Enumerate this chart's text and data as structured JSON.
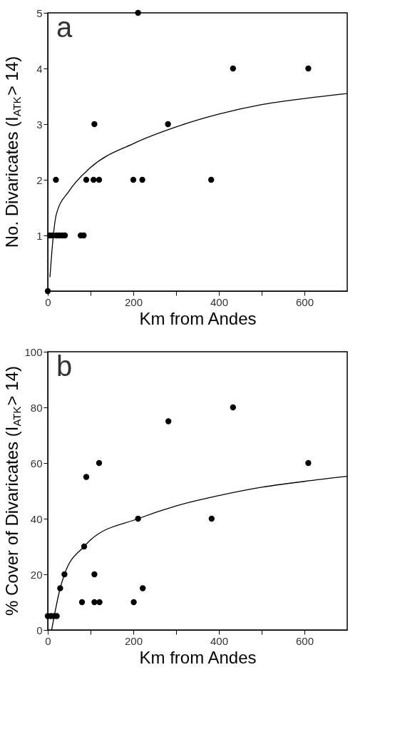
{
  "chart_data": [
    {
      "type": "scatter",
      "xlabel": "Km from Andes",
      "ylabel": "No. Divaricates (I$_{ATK}$> 14)",
      "annotations": [
        "a"
      ],
      "xlim": [
        0,
        700
      ],
      "xticks": [
        0,
        {
          "value": 100,
          "label": null
        },
        200,
        {
          "value": 300,
          "label": null
        },
        400,
        {
          "value": 500,
          "label": null
        },
        600
      ],
      "ylim": [
        0,
        5
      ],
      "yticks": [
        1,
        2,
        3,
        4,
        5
      ],
      "grid": false,
      "series": [
        {
          "type": "scatter",
          "marker": "circle",
          "color": "#000000",
          "x": [
            0,
            5,
            12,
            20,
            27,
            34,
            40,
            77,
            84,
            19,
            90,
            107,
            120,
            200,
            221,
            382,
            109,
            281,
            433,
            609,
            211
          ],
          "values": [
            0,
            1,
            1,
            1,
            1,
            1,
            1,
            1,
            1,
            2,
            2,
            2,
            2,
            2,
            2,
            2,
            3,
            3,
            4,
            4,
            5
          ]
        },
        {
          "type": "line",
          "marker": "none",
          "color": "#000000",
          "x": [
            5,
            10,
            20,
            50,
            100,
            200,
            300,
            400,
            500,
            600,
            700
          ],
          "values": [
            0.25,
            0.75,
            1.38,
            1.8,
            2.22,
            2.65,
            2.95,
            3.18,
            3.35,
            3.46,
            3.55
          ]
        }
      ]
    },
    {
      "type": "scatter",
      "xlabel": "Km from Andes",
      "ylabel": "% Cover of Divaricates (I$_{ATK}$> 14)",
      "annotations": [
        "b"
      ],
      "xlim": [
        0,
        700
      ],
      "xticks": [
        0,
        {
          "value": 100,
          "label": null
        },
        200,
        {
          "value": 300,
          "label": null
        },
        400,
        {
          "value": 500,
          "label": null
        },
        600
      ],
      "ylim": [
        0,
        100
      ],
      "yticks": [
        0,
        20,
        40,
        60,
        80,
        100
      ],
      "grid": false,
      "series": [
        {
          "type": "scatter",
          "marker": "circle",
          "color": "#000000",
          "x": [
            0,
            7,
            14,
            21,
            29,
            39,
            80,
            109,
            121,
            201,
            222,
            85,
            90,
            120,
            211,
            383,
            282,
            433,
            609,
            109
          ],
          "values": [
            5,
            5,
            5,
            5,
            15,
            20,
            10,
            10,
            10,
            10,
            15,
            30,
            55,
            60,
            40,
            40,
            75,
            80,
            60,
            20
          ]
        },
        {
          "type": "line",
          "marker": "none",
          "color": "#000000",
          "x": [
            9,
            29,
            39,
            85,
            100,
            211,
            300,
            400,
            500,
            600,
            700
          ],
          "values": [
            0,
            15,
            20,
            30,
            32.4,
            40,
            44.6,
            48.3,
            51.3,
            53.4,
            55.2
          ]
        }
      ]
    }
  ]
}
